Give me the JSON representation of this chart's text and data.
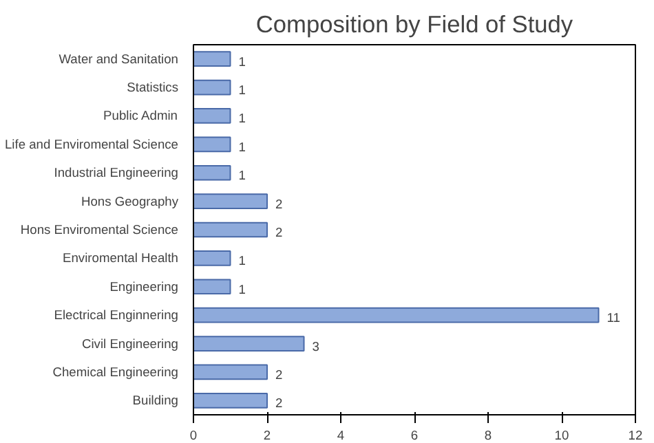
{
  "chart_data": {
    "type": "bar",
    "orientation": "horizontal",
    "title": "Composition by Field of Study",
    "categories": [
      "Water and Sanitation",
      "Statistics",
      "Public Admin",
      "Life and Enviromental Science",
      "Industrial Engineering",
      "Hons Geography",
      "Hons Enviromental Science",
      "Enviromental Health",
      "Engineering",
      "Electrical Enginnering",
      "Civil Engineering",
      "Chemical Engineering",
      "Building"
    ],
    "values": [
      1,
      1,
      1,
      1,
      1,
      2,
      2,
      1,
      1,
      11,
      3,
      2,
      2
    ],
    "color": "#8eaadb",
    "xlim": [
      0,
      12
    ],
    "xticks": [
      0,
      2,
      4,
      6,
      8,
      10,
      12
    ],
    "grid": false,
    "data_labels": true
  }
}
